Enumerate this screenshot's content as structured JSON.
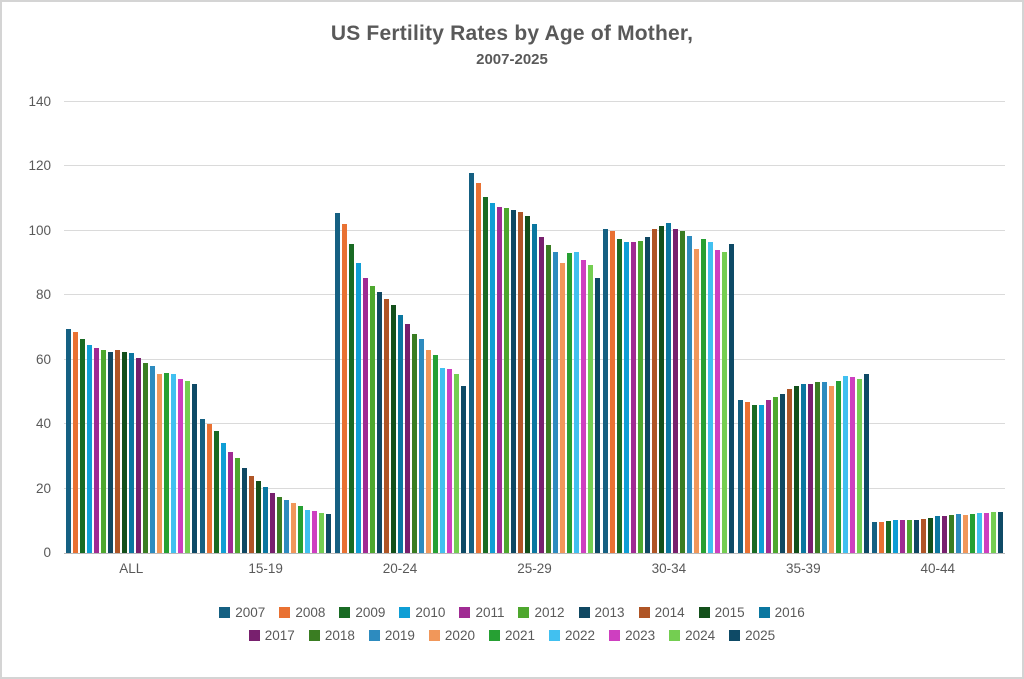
{
  "title": "US Fertility Rates by Age of Mother,",
  "subtitle": "2007-2025",
  "colors": {
    "title_text": "#595959",
    "axis_text": "#595959",
    "gridline": "#dadada",
    "axis_line": "#b9b9b9",
    "frame_border": "#d4d4d4",
    "background": "#ffffff"
  },
  "chart_data": {
    "type": "bar",
    "title": "US Fertility Rates by Age of Mother,",
    "subtitle": "2007-2025",
    "xlabel": "",
    "ylabel": "",
    "ylim": [
      0,
      140
    ],
    "yticks": [
      0,
      20,
      40,
      60,
      80,
      100,
      120,
      140
    ],
    "grid": true,
    "legend_position": "bottom",
    "legend_rows": [
      [
        "2007",
        "2008",
        "2009",
        "2010",
        "2011",
        "2012",
        "2013",
        "2014",
        "2015",
        "2016"
      ],
      [
        "2017",
        "2018",
        "2019",
        "2020",
        "2021",
        "2022",
        "2023",
        "2024",
        "2025"
      ]
    ],
    "categories": [
      "ALL",
      "15-19",
      "20-24",
      "25-29",
      "30-34",
      "35-39",
      "40-44"
    ],
    "series": [
      {
        "name": "2007",
        "color": "#156082",
        "values": [
          69.5,
          41.5,
          105.5,
          118,
          100.5,
          47.5,
          9.5
        ]
      },
      {
        "name": "2008",
        "color": "#E97132",
        "values": [
          68.5,
          40,
          102,
          115,
          100,
          47,
          9.7
        ]
      },
      {
        "name": "2009",
        "color": "#196B24",
        "values": [
          66.5,
          38,
          96,
          110.5,
          97.5,
          46,
          10
        ]
      },
      {
        "name": "2010",
        "color": "#0F9ED5",
        "values": [
          64.5,
          34,
          90,
          108.5,
          96.5,
          46,
          10.1
        ]
      },
      {
        "name": "2011",
        "color": "#A02B93",
        "values": [
          63.5,
          31.5,
          85.5,
          107.5,
          96.5,
          47.5,
          10.3
        ]
      },
      {
        "name": "2012",
        "color": "#4EA72E",
        "values": [
          63,
          29.5,
          83,
          107,
          97,
          48.5,
          10.4
        ]
      },
      {
        "name": "2013",
        "color": "#104862",
        "values": [
          62.5,
          26.5,
          81,
          106.5,
          98,
          49.5,
          10.4
        ]
      },
      {
        "name": "2014",
        "color": "#AF5526",
        "values": [
          63,
          24,
          79,
          106,
          100.5,
          51,
          10.6
        ]
      },
      {
        "name": "2015",
        "color": "#13501B",
        "values": [
          62.5,
          22.5,
          77,
          104.5,
          101.5,
          52,
          11
        ]
      },
      {
        "name": "2016",
        "color": "#0B77A0",
        "values": [
          62,
          20.5,
          74,
          102,
          102.5,
          52.5,
          11.4
        ]
      },
      {
        "name": "2017",
        "color": "#78206E",
        "values": [
          60.5,
          18.5,
          71,
          98,
          100.5,
          52.5,
          11.6
        ]
      },
      {
        "name": "2018",
        "color": "#3A7D22",
        "values": [
          59,
          17.5,
          68,
          95.5,
          100,
          53,
          11.8
        ]
      },
      {
        "name": "2019",
        "color": "#2D8BBF",
        "values": [
          58,
          16.5,
          66.5,
          93.5,
          98.5,
          53,
          12
        ]
      },
      {
        "name": "2020",
        "color": "#F1975A",
        "values": [
          55.5,
          15.5,
          63,
          90,
          94.5,
          52,
          11.8
        ]
      },
      {
        "name": "2021",
        "color": "#26A033",
        "values": [
          56,
          14.5,
          61.5,
          93,
          97.5,
          53.5,
          12.2
        ]
      },
      {
        "name": "2022",
        "color": "#41C0F0",
        "values": [
          55.5,
          13.5,
          57.5,
          93.5,
          96.5,
          55,
          12.5
        ]
      },
      {
        "name": "2023",
        "color": "#CE3FC0",
        "values": [
          54,
          13,
          57,
          91,
          94,
          54.5,
          12.5
        ]
      },
      {
        "name": "2024",
        "color": "#74CE51",
        "values": [
          53.5,
          12.5,
          55.5,
          89.5,
          93.5,
          54,
          12.6
        ]
      },
      {
        "name": "2025",
        "color": "#0E4A66",
        "values": [
          52.5,
          12,
          52,
          85.5,
          96,
          55.5,
          12.7
        ]
      }
    ]
  }
}
